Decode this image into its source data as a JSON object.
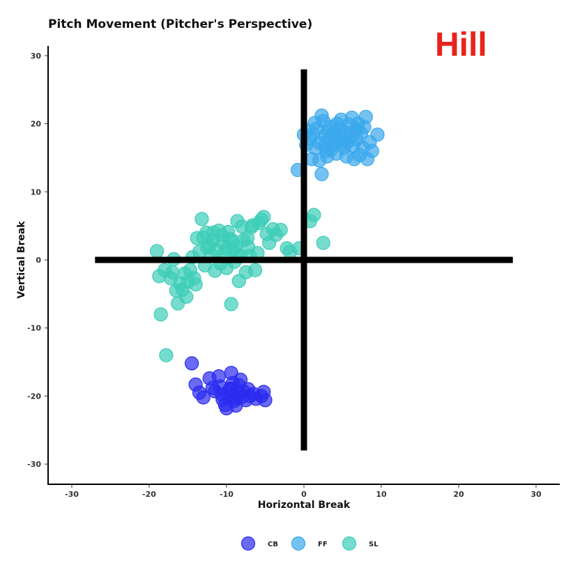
{
  "chart_data": {
    "type": "scatter",
    "title": "Pitch Movement (Pitcher's Perspective)",
    "watermark": "Hill",
    "xlabel": "Horizontal Break",
    "ylabel": "Vertical Break",
    "xlim": [
      -33,
      33
    ],
    "ylim": [
      -33,
      33
    ],
    "xticks": [
      -30,
      -20,
      -10,
      0,
      10,
      20,
      30
    ],
    "yticks": [
      -30,
      -20,
      -10,
      0,
      10,
      20,
      30
    ],
    "xtick_labels": [
      "-30",
      "-20",
      "-10",
      "0",
      "10",
      "20",
      "30"
    ],
    "ytick_labels": [
      "-30",
      "-20",
      "-10",
      "0",
      "10",
      "20",
      "30"
    ],
    "crosshair": {
      "x_range": [
        -27,
        27
      ],
      "y_range": [
        -28,
        28
      ]
    },
    "grid": false,
    "legend_position": "bottom",
    "colors": {
      "CB": "#2b2bef",
      "FF": "#3aa8ec",
      "SL": "#3ccdb8",
      "watermark": "#e8231c"
    },
    "series": [
      {
        "name": "CB",
        "points": [
          [
            -14.5,
            -15.2
          ],
          [
            -14,
            -18.3
          ],
          [
            -13.5,
            -19.5
          ],
          [
            -13,
            -20.2
          ],
          [
            -12.2,
            -17.4
          ],
          [
            -11.5,
            -19.3
          ],
          [
            -11,
            -17.1
          ],
          [
            -10.8,
            -18.6
          ],
          [
            -10.5,
            -20.5
          ],
          [
            -10.2,
            -21.3
          ],
          [
            -10,
            -21.8
          ],
          [
            -9.8,
            -20.1
          ],
          [
            -9.6,
            -19.0
          ],
          [
            -9.4,
            -16.6
          ],
          [
            -9.2,
            -18.1
          ],
          [
            -9.0,
            -20.7
          ],
          [
            -8.8,
            -21.4
          ],
          [
            -8.6,
            -19.6
          ],
          [
            -8.4,
            -18.4
          ],
          [
            -8.2,
            -17.6
          ],
          [
            -8.0,
            -20.1
          ],
          [
            -7.8,
            -19.3
          ],
          [
            -7.5,
            -20.6
          ],
          [
            -7.2,
            -19.0
          ],
          [
            -7.0,
            -20.0
          ],
          [
            -6.5,
            -19.7
          ],
          [
            -6.2,
            -20.4
          ],
          [
            -5.5,
            -20.0
          ],
          [
            -5.2,
            -19.4
          ],
          [
            -5.0,
            -20.6
          ],
          [
            -11.8,
            -18.8
          ],
          [
            -10.6,
            -19.8
          ],
          [
            -9.5,
            -18.9
          ],
          [
            -8.7,
            -20.3
          ]
        ]
      },
      {
        "name": "FF",
        "points": [
          [
            -0.8,
            13.2
          ],
          [
            2.3,
            12.6
          ],
          [
            0.0,
            18.4
          ],
          [
            0.5,
            19.0
          ],
          [
            0.8,
            17.8
          ],
          [
            1.2,
            18.5
          ],
          [
            1.5,
            16.4
          ],
          [
            1.7,
            19.3
          ],
          [
            2.0,
            17.2
          ],
          [
            2.3,
            21.2
          ],
          [
            2.5,
            20.4
          ],
          [
            2.7,
            18.2
          ],
          [
            2.9,
            16.0
          ],
          [
            3.0,
            15.2
          ],
          [
            3.2,
            17.8
          ],
          [
            3.4,
            19.6
          ],
          [
            3.6,
            18.4
          ],
          [
            3.8,
            16.9
          ],
          [
            4.0,
            18.7
          ],
          [
            4.2,
            15.6
          ],
          [
            4.4,
            17.5
          ],
          [
            4.6,
            19.4
          ],
          [
            4.8,
            20.6
          ],
          [
            5.0,
            18.0
          ],
          [
            5.2,
            16.5
          ],
          [
            5.4,
            18.8
          ],
          [
            5.6,
            17.3
          ],
          [
            5.8,
            19.9
          ],
          [
            6.0,
            18.1
          ],
          [
            6.2,
            20.9
          ],
          [
            6.4,
            16.8
          ],
          [
            6.6,
            19.0
          ],
          [
            6.8,
            17.7
          ],
          [
            7.0,
            20.0
          ],
          [
            7.2,
            15.4
          ],
          [
            7.4,
            18.6
          ],
          [
            7.8,
            19.5
          ],
          [
            8.0,
            21.0
          ],
          [
            8.2,
            14.8
          ],
          [
            8.5,
            17.3
          ],
          [
            8.8,
            16.0
          ],
          [
            9.5,
            18.4
          ],
          [
            1.0,
            14.8
          ],
          [
            2.0,
            14.6
          ],
          [
            2.7,
            16.8
          ],
          [
            3.5,
            16.2
          ],
          [
            4.3,
            20.0
          ],
          [
            5.5,
            15.2
          ],
          [
            6.5,
            14.8
          ],
          [
            1.4,
            20.1
          ],
          [
            3.1,
            18.9
          ],
          [
            4.9,
            17.2
          ],
          [
            6.9,
            19.2
          ],
          [
            7.6,
            16.5
          ],
          [
            0.3,
            16.9
          ]
        ]
      },
      {
        "name": "SL",
        "points": [
          [
            -19.0,
            1.3
          ],
          [
            -18.5,
            -8.0
          ],
          [
            -18.7,
            -2.4
          ],
          [
            -18.0,
            -1.5
          ],
          [
            -17.8,
            -14.0
          ],
          [
            -17.2,
            -2.7
          ],
          [
            -17.0,
            -1.8
          ],
          [
            -16.8,
            0.1
          ],
          [
            -16.5,
            -4.5
          ],
          [
            -16.3,
            -6.4
          ],
          [
            -16.0,
            -3.5
          ],
          [
            -15.7,
            -4.4
          ],
          [
            -15.4,
            -2.0
          ],
          [
            -15.2,
            -5.4
          ],
          [
            -15.0,
            -3.2
          ],
          [
            -14.7,
            -1.5
          ],
          [
            -14.4,
            0.4
          ],
          [
            -14.2,
            -2.7
          ],
          [
            -14.0,
            -3.6
          ],
          [
            -13.8,
            3.2
          ],
          [
            -13.5,
            1.2
          ],
          [
            -13.2,
            6.0
          ],
          [
            -13.0,
            3.3
          ],
          [
            -12.8,
            -0.8
          ],
          [
            -12.5,
            1.8
          ],
          [
            -12.2,
            2.1
          ],
          [
            -12.0,
            0.8
          ],
          [
            -11.7,
            4.0
          ],
          [
            -11.5,
            -1.6
          ],
          [
            -11.3,
            1.4
          ],
          [
            -11.0,
            4.3
          ],
          [
            -10.8,
            -0.5
          ],
          [
            -10.5,
            2.6
          ],
          [
            -10.2,
            1.1
          ],
          [
            -10.0,
            -1.2
          ],
          [
            -9.8,
            4.1
          ],
          [
            -9.6,
            3.1
          ],
          [
            -9.4,
            -6.5
          ],
          [
            -9.2,
            1.5
          ],
          [
            -9.0,
            -0.3
          ],
          [
            -8.8,
            2.0
          ],
          [
            -8.6,
            5.7
          ],
          [
            -8.4,
            -3.1
          ],
          [
            -8.2,
            0.5
          ],
          [
            -8.0,
            4.9
          ],
          [
            -7.8,
            2.9
          ],
          [
            -7.5,
            -1.8
          ],
          [
            -7.3,
            3.2
          ],
          [
            -7.0,
            0.6
          ],
          [
            -6.8,
            4.8
          ],
          [
            -6.6,
            5.1
          ],
          [
            -6.3,
            -1.5
          ],
          [
            -6.0,
            1.0
          ],
          [
            -5.8,
            5.4
          ],
          [
            -5.5,
            5.9
          ],
          [
            -5.2,
            6.3
          ],
          [
            -4.8,
            3.8
          ],
          [
            -4.5,
            2.5
          ],
          [
            -4.0,
            4.5
          ],
          [
            -3.6,
            3.7
          ],
          [
            -3.0,
            4.4
          ],
          [
            -2.2,
            1.7
          ],
          [
            -1.8,
            1.2
          ],
          [
            -0.6,
            1.7
          ],
          [
            0.8,
            5.7
          ],
          [
            1.3,
            6.6
          ],
          [
            2.5,
            2.5
          ],
          [
            -10.0,
            1.6
          ],
          [
            -9.2,
            2.8
          ],
          [
            -11.8,
            2.9
          ],
          [
            -12.6,
            4.0
          ],
          [
            -8.7,
            0.9
          ],
          [
            -7.2,
            1.9
          ],
          [
            -10.6,
            3.6
          ]
        ]
      }
    ]
  }
}
